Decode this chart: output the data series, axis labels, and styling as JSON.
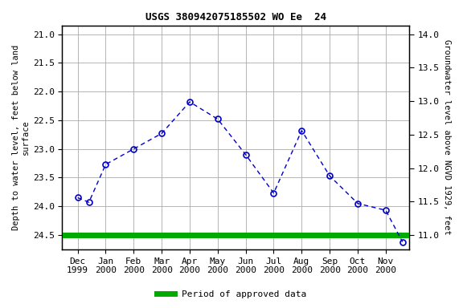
{
  "title": "USGS 380942075185502 WO Ee  24",
  "x_labels": [
    "Dec\n1999",
    "Jan\n2000",
    "Feb\n2000",
    "Mar\n2000",
    "Apr\n2000",
    "May\n2000",
    "Jun\n2000",
    "Jul\n2000",
    "Aug\n2000",
    "Sep\n2000",
    "Oct\n2000",
    "Nov\n2000"
  ],
  "x_positions": [
    0,
    1,
    2,
    3,
    4,
    5,
    6,
    7,
    8,
    9,
    10,
    11
  ],
  "x_data": [
    0,
    0.4,
    1.0,
    2.0,
    3.0,
    4.0,
    5.0,
    6.0,
    7.0,
    8.0,
    9.0,
    10.0,
    11.0,
    11.6
  ],
  "y_data": [
    23.85,
    23.93,
    23.27,
    23.0,
    22.73,
    22.18,
    22.48,
    23.1,
    23.77,
    22.68,
    23.47,
    23.95,
    24.07,
    24.62
  ],
  "ylabel_left": "Depth to water level, feet below land\nsurface",
  "ylabel_right": "Groundwater level above NGVD 1929, feet",
  "yticks_left": [
    21.0,
    21.5,
    22.0,
    22.5,
    23.0,
    23.5,
    24.0,
    24.5
  ],
  "yticks_right": [
    14.0,
    13.5,
    13.0,
    12.5,
    12.0,
    11.5,
    11.0
  ],
  "ylim_bottom": 24.75,
  "ylim_top": 20.85,
  "xlim_left": -0.55,
  "xlim_right": 11.85,
  "line_color": "#0000cc",
  "bg_color": "#ffffff",
  "plot_bg": "#ffffff",
  "grid_color": "#aaaaaa",
  "green_color": "#00aa00",
  "legend_label": "Period of approved data",
  "title_fontsize": 9,
  "axis_label_fontsize": 7.5,
  "tick_fontsize": 8,
  "marker_size": 5
}
